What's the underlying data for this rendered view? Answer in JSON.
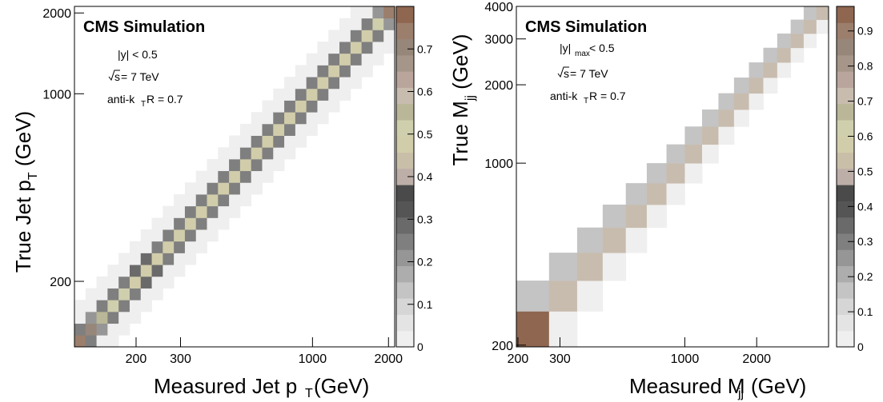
{
  "chart_data": [
    {
      "type": "heatmap",
      "xlabel_main": "Measured Jet p",
      "xlabel_sub": "T",
      "xlabel_unit": " (GeV)",
      "ylabel_main": "True Jet p",
      "ylabel_sub": "T",
      "ylabel_unit": " (GeV)",
      "x_scale": "log",
      "y_scale": "log",
      "xlim": [
        114,
        2116
      ],
      "ylim": [
        114,
        2116
      ],
      "x_ticks": [
        200,
        300,
        1000,
        2000
      ],
      "y_ticks": [
        200,
        1000,
        2000
      ],
      "annotation": {
        "title": "CMS Simulation",
        "line1": "|y| < 0.5",
        "line2_sqrt": "s",
        "line2_rest": " = 7 TeV",
        "line3_main": "anti-k",
        "line3_sub": "T",
        "line3_rest": " R = 0.7"
      },
      "colorbar": {
        "min": 0,
        "max": 0.8,
        "ticks": [
          0,
          0.1,
          0.2,
          0.3,
          0.4,
          0.5,
          0.6,
          0.7
        ]
      },
      "bins_note": "diagonal response matrix, 29 log-spaced bins",
      "diagonal": [
        0.75,
        0.7,
        0.55,
        0.5,
        0.5,
        0.48,
        0.47,
        0.47,
        0.46,
        0.46,
        0.46,
        0.46,
        0.46,
        0.46,
        0.46,
        0.46,
        0.46,
        0.46,
        0.46,
        0.46,
        0.46,
        0.46,
        0.46,
        0.46,
        0.46,
        0.46,
        0.47,
        0.5,
        0.75
      ],
      "near_diagonal": [
        0.25,
        0.22,
        0.25,
        0.25,
        0.26,
        0.27,
        0.27,
        0.26,
        0.26,
        0.26,
        0.26,
        0.26,
        0.26,
        0.26,
        0.26,
        0.26,
        0.26,
        0.26,
        0.26,
        0.26,
        0.26,
        0.26,
        0.26,
        0.26,
        0.26,
        0.26,
        0.26,
        0.2,
        0.12
      ],
      "tail": 0.02
    },
    {
      "type": "heatmap",
      "xlabel_main": "Measured M",
      "xlabel_sub": "jj",
      "xlabel_unit": " (GeV)",
      "ylabel_main": "True M",
      "ylabel_sub": "jj",
      "ylabel_unit": " (GeV)",
      "x_scale": "log",
      "y_scale": "log",
      "xlim": [
        197,
        4000
      ],
      "ylim": [
        197,
        4000
      ],
      "x_ticks": [
        200,
        300,
        1000,
        2000
      ],
      "y_ticks": [
        200,
        1000,
        2000,
        3000,
        4000
      ],
      "x_tick_labels": [
        "200",
        "300",
        "1000",
        "2000"
      ],
      "annotation": {
        "title": "CMS Simulation",
        "line1_main": "|y|",
        "line1_sub": "max",
        "line1_rest": " < 0.5",
        "line2_sqrt": "s",
        "line2_rest": " = 7 TeV",
        "line3_main": "anti-k",
        "line3_sub": "T",
        "line3_rest": " R = 0.7"
      },
      "colorbar": {
        "min": 0,
        "max": 0.97,
        "ticks": [
          0,
          0.1,
          0.2,
          0.3,
          0.4,
          0.5,
          0.6,
          0.7,
          0.8,
          0.9
        ]
      },
      "bin_edges": [
        197,
        270,
        354,
        453,
        566,
        693,
        838,
        1000,
        1181,
        1383,
        1607,
        1856,
        2132,
        2438,
        2775,
        3147,
        3558,
        4000
      ],
      "diagonal": [
        0.97,
        0.72,
        0.72,
        0.72,
        0.72,
        0.72,
        0.72,
        0.72,
        0.72,
        0.72,
        0.72,
        0.72,
        0.72,
        0.72,
        0.72,
        0.72,
        0.72
      ],
      "above_diagonal": [
        0.15,
        0.15,
        0.15,
        0.15,
        0.15,
        0.15,
        0.15,
        0.15,
        0.15,
        0.15,
        0.15,
        0.15,
        0.15,
        0.15,
        0.15,
        0.15
      ],
      "below_diagonal": [
        0.03,
        0.03,
        0.03,
        0.03,
        0.03,
        0.03,
        0.03,
        0.03,
        0.03,
        0.03,
        0.03,
        0.03,
        0.03,
        0.03,
        0.03,
        0.03
      ]
    }
  ]
}
